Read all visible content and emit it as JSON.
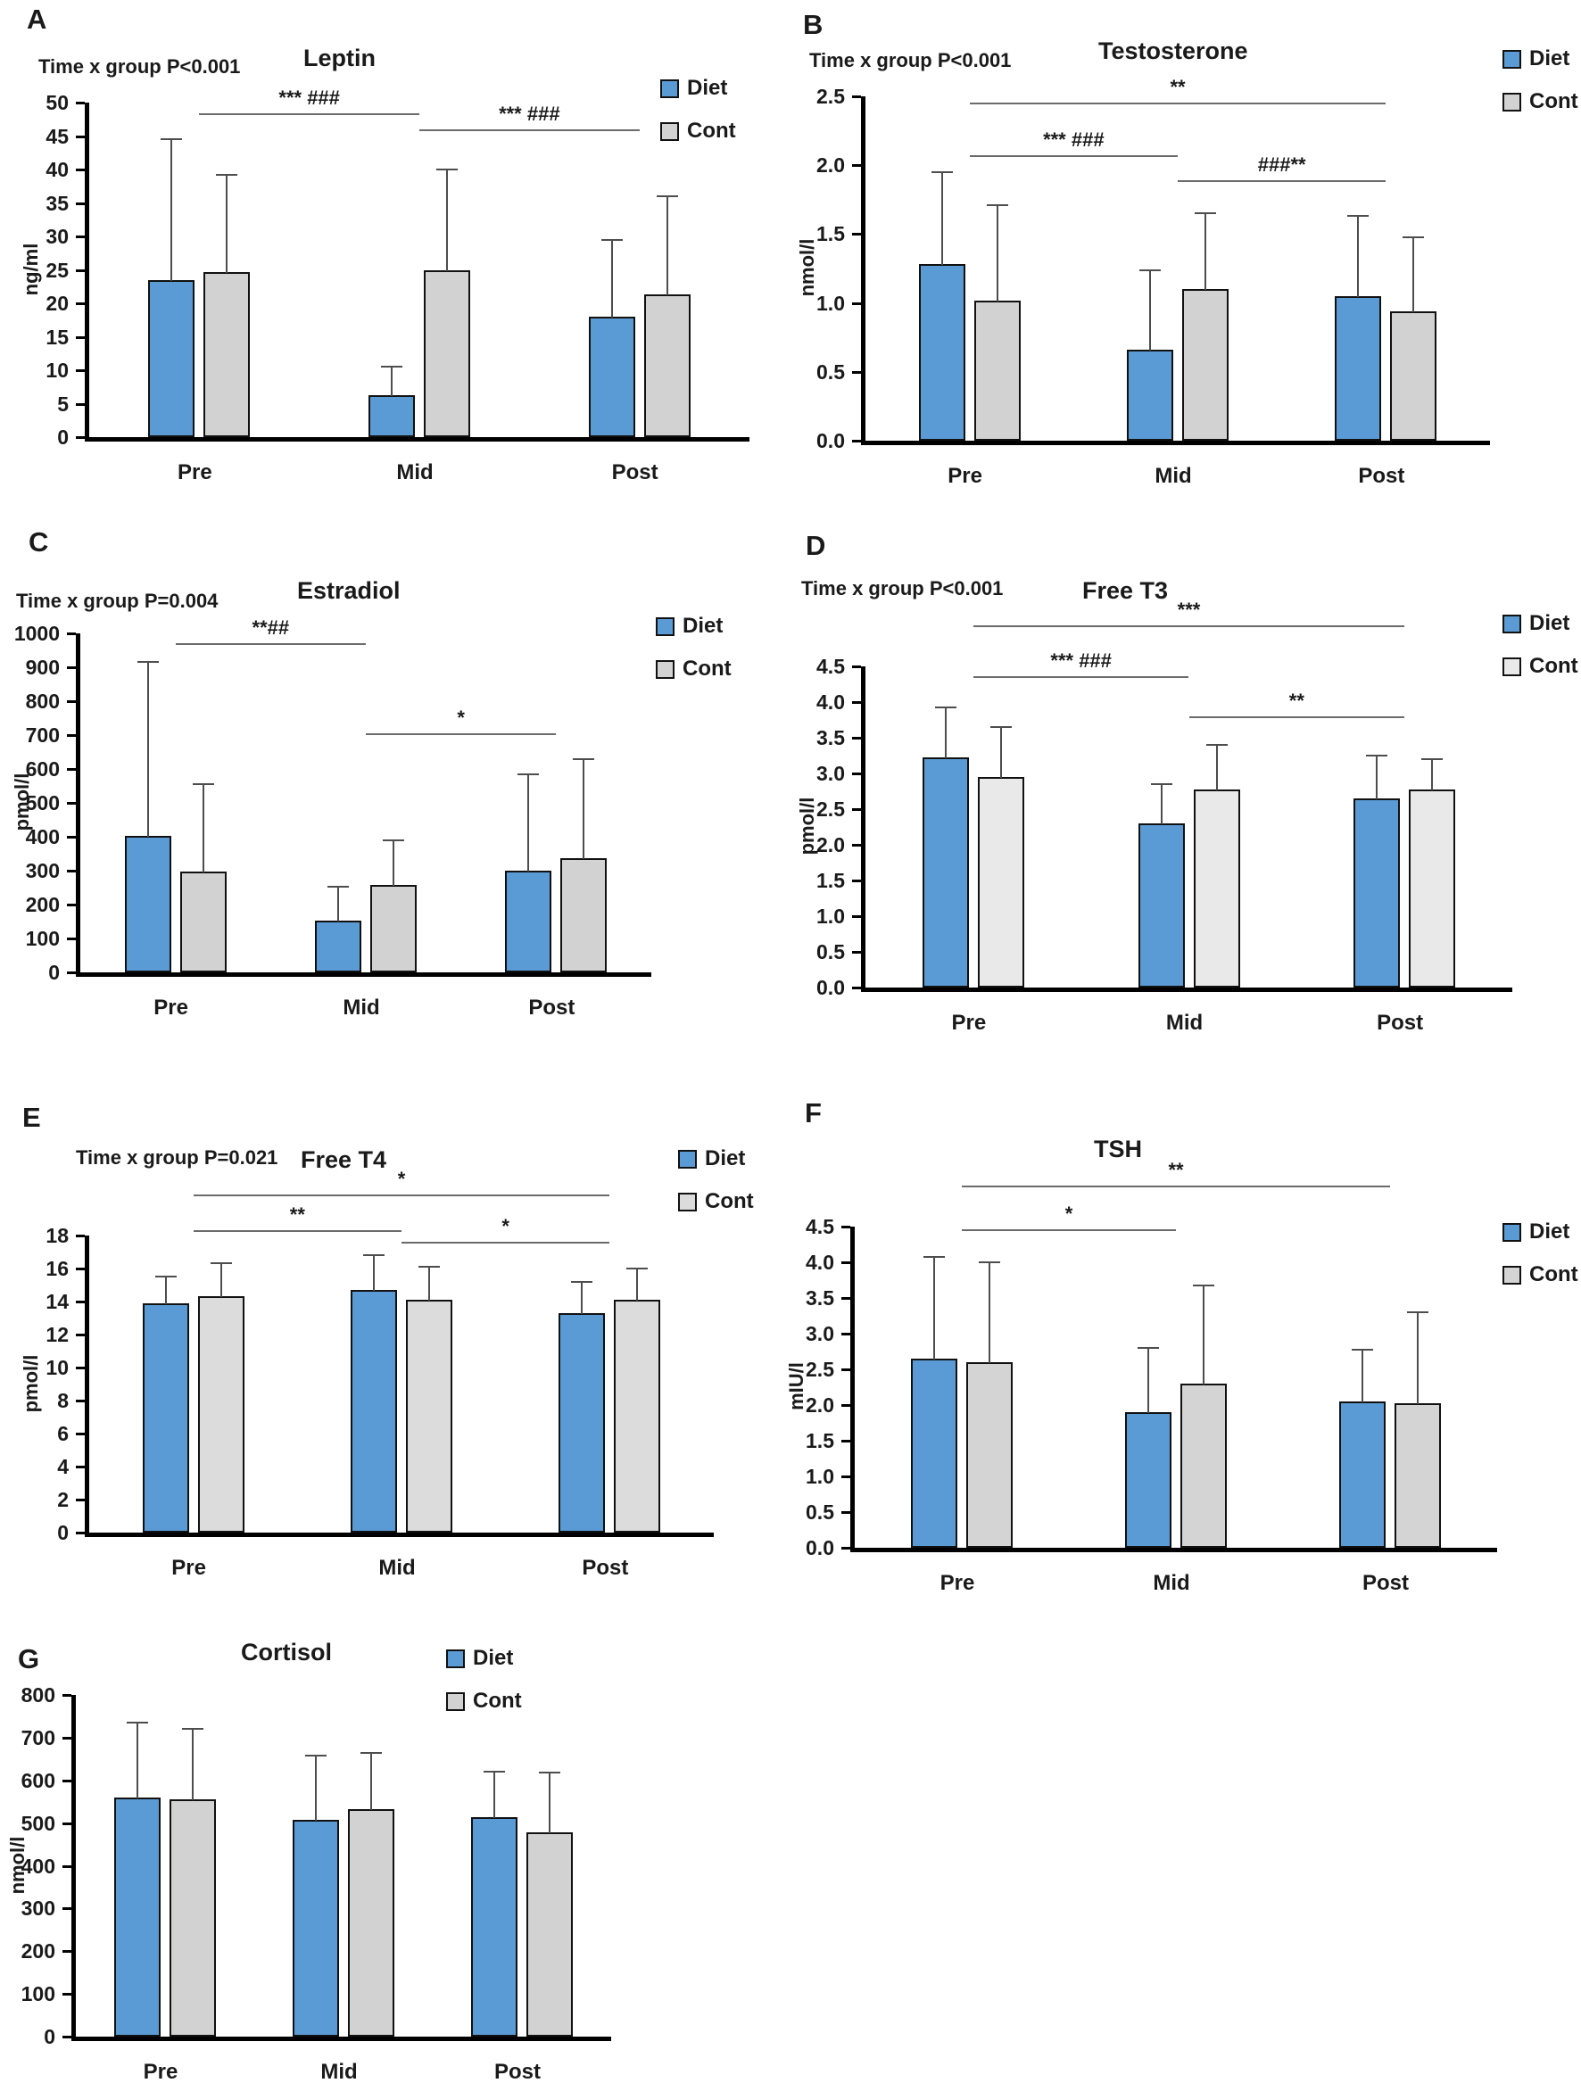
{
  "figure": {
    "legend_series": [
      "Diet",
      "Cont"
    ],
    "colors": {
      "diet": "#5B9BD5",
      "axis": "#000000",
      "error_bar": "#4d4d4d",
      "sig_line": "#6b6b6b"
    }
  },
  "chart_data": [
    {
      "panel": "A",
      "type": "bar",
      "title": "Leptin",
      "p_label": "Time x group P<0.001",
      "ylabel": "ng/ml",
      "ylim": [
        0,
        50
      ],
      "ystep": 5,
      "yticks": [
        "0",
        "5",
        "10",
        "15",
        "20",
        "25",
        "30",
        "35",
        "40",
        "45",
        "50"
      ],
      "categories": [
        "Pre",
        "Mid",
        "Post"
      ],
      "cont_color": "#d2d2d2",
      "legend_position": "top-right",
      "series": [
        {
          "name": "Diet",
          "values": [
            23.5,
            6.3,
            18.0
          ],
          "errors_top": [
            44.5,
            10.5,
            29.5
          ]
        },
        {
          "name": "Cont",
          "values": [
            24.7,
            24.9,
            21.3
          ],
          "errors_top": [
            39.2,
            40.0,
            36.0
          ]
        }
      ],
      "significance": [
        {
          "from": "Pre",
          "to": "Mid",
          "y": 48.2,
          "label": "*** ###"
        },
        {
          "from": "Mid",
          "to": "Post",
          "y": 45.8,
          "label": "*** ###"
        }
      ]
    },
    {
      "panel": "B",
      "type": "bar",
      "title": "Testosterone",
      "p_label": "Time x group P<0.001",
      "ylabel": "nmol/l",
      "ylim": [
        0,
        2.5
      ],
      "ystep": 0.5,
      "yticks": [
        "0.0",
        "0.5",
        "1.0",
        "1.5",
        "2.0",
        "2.5"
      ],
      "categories": [
        "Pre",
        "Mid",
        "Post"
      ],
      "cont_color": "#d2d2d2",
      "legend_position": "top-right",
      "series": [
        {
          "name": "Diet",
          "values": [
            1.28,
            0.66,
            1.05
          ],
          "errors_top": [
            1.95,
            1.24,
            1.63
          ]
        },
        {
          "name": "Cont",
          "values": [
            1.02,
            1.1,
            0.94
          ],
          "errors_top": [
            1.71,
            1.65,
            1.48
          ]
        }
      ],
      "significance": [
        {
          "from": "Pre",
          "to": "Post",
          "y": 2.44,
          "label": "**"
        },
        {
          "from": "Pre",
          "to": "Mid",
          "y": 2.06,
          "label": "*** ###"
        },
        {
          "from": "Mid",
          "to": "Post",
          "y": 1.88,
          "label": "###**"
        }
      ]
    },
    {
      "panel": "C",
      "type": "bar",
      "title": "Estradiol",
      "p_label": "Time x group P=0.004",
      "ylabel": "pmol/l",
      "ylim": [
        0,
        1000
      ],
      "ystep": 100,
      "yticks": [
        "0",
        "100",
        "200",
        "300",
        "400",
        "500",
        "600",
        "700",
        "800",
        "900",
        "1000"
      ],
      "categories": [
        "Pre",
        "Mid",
        "Post"
      ],
      "cont_color": "#d2d2d2",
      "legend_position": "top-right",
      "series": [
        {
          "name": "Diet",
          "values": [
            402,
            153,
            300
          ],
          "errors_top": [
            915,
            252,
            585
          ]
        },
        {
          "name": "Cont",
          "values": [
            298,
            257,
            338
          ],
          "errors_top": [
            555,
            390,
            630
          ]
        }
      ],
      "significance": [
        {
          "from": "Pre",
          "to": "Mid",
          "y": 965,
          "label": "**##"
        },
        {
          "from": "Mid",
          "to": "Post",
          "y": 700,
          "label": "*"
        }
      ]
    },
    {
      "panel": "D",
      "type": "bar",
      "title": "Free T3",
      "p_label": "Time x group P<0.001",
      "ylabel": "pmol/l",
      "ylim": [
        0,
        4.5
      ],
      "ystep": 0.5,
      "yticks": [
        "0.0",
        "0.5",
        "1.0",
        "1.5",
        "2.0",
        "2.5",
        "3.0",
        "3.5",
        "4.0",
        "4.5"
      ],
      "categories": [
        "Pre",
        "Mid",
        "Post"
      ],
      "cont_color": "#e9e9e9",
      "legend_position": "top-right",
      "series": [
        {
          "name": "Diet",
          "values": [
            3.22,
            2.3,
            2.65
          ],
          "errors_top": [
            3.93,
            2.85,
            3.25
          ]
        },
        {
          "name": "Cont",
          "values": [
            2.95,
            2.78,
            2.77
          ],
          "errors_top": [
            3.65,
            3.4,
            3.2
          ]
        }
      ],
      "significance": [
        {
          "from": "Pre",
          "to": "Post",
          "y": 5.05,
          "label": "***"
        },
        {
          "from": "Pre",
          "to": "Mid",
          "y": 4.34,
          "label": "*** ###"
        },
        {
          "from": "Mid",
          "to": "Post",
          "y": 3.78,
          "label": "**"
        }
      ]
    },
    {
      "panel": "E",
      "type": "bar",
      "title": "Free T4",
      "p_label": "Time x group P=0.021",
      "ylabel": "pmol/l",
      "ylim": [
        0,
        18
      ],
      "ystep": 2,
      "yticks": [
        "0",
        "2",
        "4",
        "6",
        "8",
        "10",
        "12",
        "14",
        "16",
        "18"
      ],
      "categories": [
        "Pre",
        "Mid",
        "Post"
      ],
      "cont_color": "#dcdcdc",
      "legend_position": "top-right",
      "series": [
        {
          "name": "Diet",
          "values": [
            13.9,
            14.7,
            13.3
          ],
          "errors_top": [
            15.5,
            16.8,
            15.2
          ]
        },
        {
          "name": "Cont",
          "values": [
            14.3,
            14.1,
            14.1
          ],
          "errors_top": [
            16.3,
            16.1,
            16.0
          ]
        }
      ],
      "significance": [
        {
          "from": "Pre",
          "to": "Post",
          "y": 20.4,
          "label": "*"
        },
        {
          "from": "Pre",
          "to": "Mid",
          "y": 18.2,
          "label": "**"
        },
        {
          "from": "Mid",
          "to": "Post",
          "y": 17.5,
          "label": "*"
        }
      ]
    },
    {
      "panel": "F",
      "type": "bar",
      "title": "TSH",
      "p_label": null,
      "ylabel": "mIU/l",
      "ylim": [
        0,
        4.5
      ],
      "ystep": 0.5,
      "yticks": [
        "0.0",
        "0.5",
        "1.0",
        "1.5",
        "2.0",
        "2.5",
        "3.0",
        "3.5",
        "4.0",
        "4.5"
      ],
      "categories": [
        "Pre",
        "Mid",
        "Post"
      ],
      "cont_color": "#d4d4d4",
      "legend_position": "top-right",
      "series": [
        {
          "name": "Diet",
          "values": [
            2.65,
            1.9,
            2.05
          ],
          "errors_top": [
            4.07,
            2.8,
            2.77
          ]
        },
        {
          "name": "Cont",
          "values": [
            2.6,
            2.3,
            2.03
          ],
          "errors_top": [
            4.0,
            3.67,
            3.3
          ]
        }
      ],
      "significance": [
        {
          "from": "Pre",
          "to": "Post",
          "y": 5.05,
          "label": "**"
        },
        {
          "from": "Pre",
          "to": "Mid",
          "y": 4.44,
          "label": "*"
        }
      ]
    },
    {
      "panel": "G",
      "type": "bar",
      "title": "Cortisol",
      "p_label": null,
      "ylabel": "nmol/l",
      "ylim": [
        0,
        800
      ],
      "ystep": 100,
      "yticks": [
        "0",
        "100",
        "200",
        "300",
        "400",
        "500",
        "600",
        "700",
        "800"
      ],
      "categories": [
        "Pre",
        "Mid",
        "Post"
      ],
      "cont_color": "#d2d2d2",
      "legend_position": "top-right",
      "series": [
        {
          "name": "Diet",
          "values": [
            560,
            508,
            513
          ],
          "errors_top": [
            735,
            658,
            620
          ]
        },
        {
          "name": "Cont",
          "values": [
            555,
            532,
            478
          ],
          "errors_top": [
            720,
            665,
            618
          ]
        }
      ],
      "significance": []
    }
  ]
}
